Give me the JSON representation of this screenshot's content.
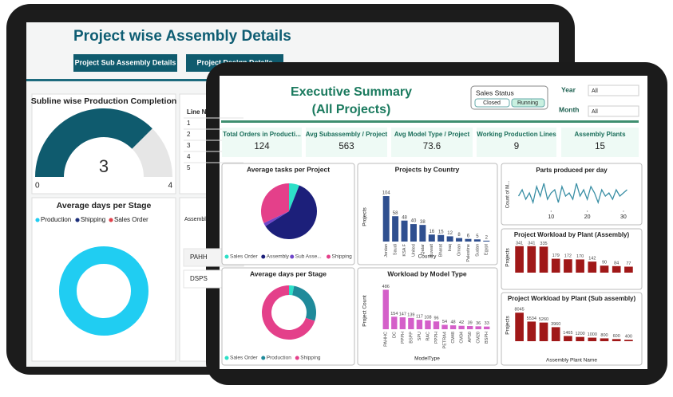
{
  "back_screen": {
    "title": "Project wise Assembly Details",
    "buttons": [
      "Project Sub Assembly Details",
      "Project Design Details"
    ],
    "line_table": {
      "header": "Line No",
      "rows": [
        "1",
        "2",
        "3",
        "4",
        "5"
      ]
    },
    "assembly_table": {
      "header": "Assembly",
      "rows": [
        "PAHH",
        "DSPS"
      ]
    }
  },
  "front_screen": {
    "title_line1": "Executive Summary",
    "title_line2": "(All Projects)",
    "slicer": {
      "title": "Sales Status",
      "options": [
        "Closed",
        "Running"
      ]
    },
    "filters": [
      {
        "label": "Year",
        "value": "All"
      },
      {
        "label": "Month",
        "value": "All"
      }
    ],
    "kpis": [
      {
        "label": "Total Orders in Producti...",
        "value": 124
      },
      {
        "label": "Avg Subassembly / Project",
        "value": 563
      },
      {
        "label": "Avg Model Type / Project",
        "value": 73.6
      },
      {
        "label": "Working Production Lines",
        "value": 9
      },
      {
        "label": "Assembly Plants",
        "value": 15
      }
    ]
  },
  "chart_data": [
    {
      "type": "gauge",
      "title": "Subline wise Production Completion",
      "value": 3,
      "ylim": [
        0,
        4
      ],
      "color": "#0f5b6e"
    },
    {
      "type": "donut",
      "title": "Average days per Stage",
      "categories": [
        "Production",
        "Shipping",
        "Sales Order"
      ],
      "values": [
        100,
        0,
        0
      ],
      "colors": [
        "#20cdf2",
        "#1c2f7a",
        "#e0404a"
      ]
    },
    {
      "type": "pie",
      "title": "Average tasks per Project",
      "categories": [
        "Sales Order",
        "Assembly",
        "Sub Asse...",
        "Shipping"
      ],
      "values": [
        6,
        60,
        2,
        32
      ],
      "colors": [
        "#2de0c8",
        "#1c1f7a",
        "#6f46c9",
        "#e4408a"
      ]
    },
    {
      "type": "bar",
      "title": "Projects by Country",
      "x_label": "Country",
      "y_label": "Projects",
      "color": "#2f4f8f",
      "categories": [
        "Jordan",
        "Saudi",
        "KSA F",
        "United",
        "Qatar",
        "Kuwait",
        "Bharat",
        "Iraq",
        "Oman",
        "Palestine",
        "Sudan",
        "Egypt"
      ],
      "values": [
        104,
        58,
        48,
        40,
        38,
        16,
        15,
        12,
        8,
        6,
        5,
        2
      ],
      "ylim": [
        0,
        115
      ]
    },
    {
      "type": "line",
      "title": "Parts produced per day",
      "y_label": "Count of M...",
      "color": "#3a8fa5",
      "x": [
        1,
        2,
        3,
        4,
        5,
        6,
        7,
        8,
        9,
        10,
        11,
        12,
        13,
        14,
        15,
        16,
        17,
        18,
        19,
        20,
        21,
        22,
        23,
        24,
        25,
        26,
        27,
        28,
        29,
        30,
        31
      ],
      "values": [
        4,
        6,
        3,
        5,
        2,
        7,
        4,
        8,
        3,
        5,
        6,
        2,
        7,
        4,
        5,
        3,
        8,
        4,
        6,
        3,
        7,
        5,
        2,
        6,
        4,
        5,
        3,
        6,
        4,
        5,
        6
      ],
      "xlim": [
        0,
        32
      ],
      "xticks": [
        10,
        20,
        30
      ],
      "ylim": [
        0,
        10
      ]
    },
    {
      "type": "donut",
      "title": "Average days per Stage",
      "categories": [
        "Sales Order",
        "Production",
        "Shipping"
      ],
      "values": [
        3,
        27,
        70
      ],
      "colors": [
        "#2de0c8",
        "#1f8a9a",
        "#e4408a"
      ]
    },
    {
      "type": "bar",
      "title": "Workload by Model Type",
      "x_label": "ModelType",
      "y_label": "Project Count",
      "color": "#d45fc9",
      "categories": [
        "PAHHC",
        "DC",
        "PPPH",
        "BSPP",
        "SPU",
        "RAC",
        "PPPH",
        "PETRA4",
        "CM48",
        "CM34",
        "AP50",
        "CM20",
        "BSPH"
      ],
      "values": [
        486,
        154,
        147,
        139,
        117,
        108,
        96,
        54,
        48,
        42,
        39,
        36,
        33
      ],
      "ylim": [
        0,
        520
      ]
    },
    {
      "type": "bar",
      "title": "Project Workload by Plant (Assembly)",
      "y_label": "Projects",
      "color": "#a01818",
      "values": [
        341,
        341,
        335,
        179,
        172,
        170,
        142,
        90,
        84,
        77
      ],
      "ylim": [
        0,
        380
      ]
    },
    {
      "type": "bar",
      "title": "Project Workload by Plant (Sub assembly)",
      "x_label": "Assembly Plant Name",
      "y_label": "Projects",
      "color": "#a01818",
      "values": [
        8045,
        5534,
        5260,
        3960,
        1465,
        1200,
        1000,
        800,
        600,
        400
      ],
      "ylim": [
        0,
        9000
      ]
    }
  ]
}
